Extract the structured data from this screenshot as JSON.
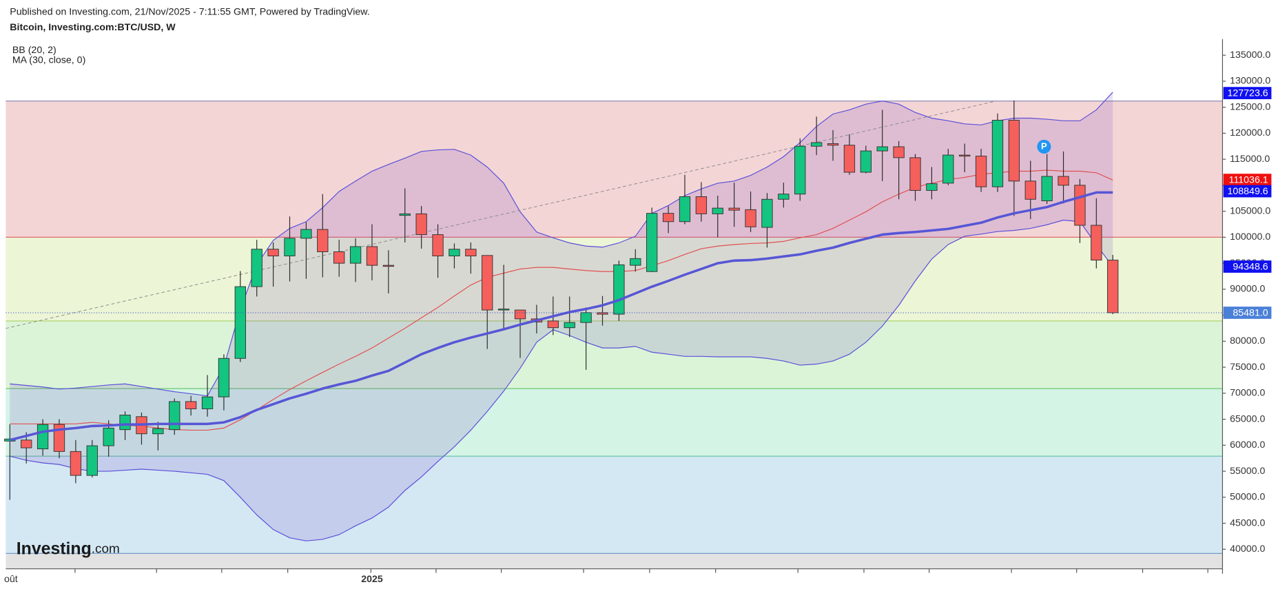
{
  "chart_data": {
    "type": "candlestick",
    "published": "Published on Investing.com, 21/Nov/2025 - 7:11:55 GMT, Powered by TradingView.",
    "title": "Bitcoin, Investing.com:BTC/USD, W",
    "indicator_labels": [
      "BB (20, 2)",
      "MA (30, close, 0)"
    ],
    "logo": {
      "name": "Investing",
      "suffix": ".com"
    },
    "marker_label": "P",
    "up_color": "#13c580",
    "down_color": "#f5605c",
    "ylim": [
      36240,
      138100
    ],
    "yticks": [
      {
        "value": 40000,
        "label": "40000.0"
      },
      {
        "value": 45000,
        "label": "45000.0"
      },
      {
        "value": 50000,
        "label": "50000.0"
      },
      {
        "value": 55000,
        "label": "55000.0"
      },
      {
        "value": 60000,
        "label": "60000.0"
      },
      {
        "value": 65000,
        "label": "65000.0"
      },
      {
        "value": 70000,
        "label": "70000.0"
      },
      {
        "value": 75000,
        "label": "75000.0"
      },
      {
        "value": 80000,
        "label": "80000.0"
      },
      {
        "value": 85000,
        "label": "85000.0"
      },
      {
        "value": 90000,
        "label": "90000.0"
      },
      {
        "value": 95000,
        "label": "95000.0"
      },
      {
        "value": 100000,
        "label": "100000.0"
      },
      {
        "value": 105000,
        "label": "105000.0"
      },
      {
        "value": 110000,
        "label": "110000.0"
      },
      {
        "value": 115000,
        "label": "115000.0"
      },
      {
        "value": 120000,
        "label": "120000.0"
      },
      {
        "value": 125000,
        "label": "125000.0"
      },
      {
        "value": 130000,
        "label": "130000.0"
      },
      {
        "value": 135000,
        "label": "135000.0"
      }
    ],
    "levels": [
      {
        "value": 126200,
        "color": "#8f8fb8",
        "fill": "#f4d5d6"
      },
      {
        "value": 100000,
        "color": "#e06a6a",
        "fill": "#ecf5d6"
      },
      {
        "value": 83900,
        "color": "#a8d060",
        "fill": "#dbf4d8"
      },
      {
        "value": 70900,
        "color": "#62c262",
        "fill": "#d4f4e6"
      },
      {
        "value": 57900,
        "color": "#5fc0a0",
        "fill": "#d4e8f4"
      },
      {
        "value": 39200,
        "color": "#6a94c4",
        "fill": "#e2e2e2"
      }
    ],
    "price_labels": [
      {
        "value": 127723.6,
        "label": "127723.6",
        "color": "#1010f0"
      },
      {
        "value": 111036.1,
        "label": "111036.1",
        "color": "#f01010"
      },
      {
        "value": 108849.6,
        "label": "108849.6",
        "color": "#1010f0"
      },
      {
        "value": 94348.6,
        "label": "94348.6",
        "color": "#1010f0"
      },
      {
        "value": 85481.0,
        "label": "85481.0",
        "color": "#4a80d8"
      }
    ],
    "categories": [
      "oût",
      null,
      null,
      null,
      null,
      null,
      null,
      null,
      null,
      null,
      null,
      null,
      null,
      null,
      null,
      null,
      null,
      null,
      null,
      null,
      null,
      null,
      "2025",
      null,
      null,
      null,
      null,
      null,
      null,
      null,
      null,
      null,
      null,
      null,
      null,
      null,
      null,
      null,
      null,
      null,
      null,
      null,
      null,
      null,
      null,
      null,
      null,
      null,
      null,
      null,
      null,
      null,
      null,
      null,
      null,
      null,
      null,
      null,
      null,
      null,
      null,
      null,
      null,
      null,
      null,
      null,
      null,
      null
    ],
    "ohlc": [
      [
        60800,
        64000,
        49500,
        61200
      ],
      [
        61000,
        62500,
        56500,
        59500
      ],
      [
        59300,
        65000,
        58000,
        64000
      ],
      [
        64000,
        65000,
        57500,
        58800
      ],
      [
        58800,
        61000,
        52700,
        54200
      ],
      [
        54200,
        61000,
        53800,
        59900
      ],
      [
        59900,
        64800,
        57800,
        63300
      ],
      [
        63000,
        66500,
        61000,
        65800
      ],
      [
        65500,
        66300,
        60100,
        62200
      ],
      [
        62200,
        64500,
        59000,
        63200
      ],
      [
        63000,
        69000,
        62000,
        68400
      ],
      [
        68400,
        69500,
        65700,
        67000
      ],
      [
        67000,
        73500,
        65500,
        69300
      ],
      [
        69300,
        77500,
        66700,
        76700
      ],
      [
        76700,
        93500,
        76000,
        90500
      ],
      [
        90500,
        99500,
        88600,
        97700
      ],
      [
        97700,
        99000,
        90500,
        96400
      ],
      [
        96400,
        104000,
        91500,
        99800
      ],
      [
        99800,
        102900,
        92000,
        101500
      ],
      [
        101500,
        108300,
        92300,
        97200
      ],
      [
        97200,
        99500,
        92400,
        95000
      ],
      [
        95000,
        99800,
        91400,
        98200
      ],
      [
        98200,
        102500,
        91700,
        94600
      ],
      [
        94600,
        97500,
        89200,
        94400
      ],
      [
        104200,
        109400,
        99000,
        104500
      ],
      [
        104500,
        106000,
        97800,
        100500
      ],
      [
        100500,
        102500,
        92200,
        96400
      ],
      [
        96400,
        98800,
        94000,
        97700
      ],
      [
        97700,
        99000,
        93000,
        96400
      ],
      [
        96500,
        96500,
        78500,
        86000
      ],
      [
        86000,
        94700,
        82500,
        86200
      ],
      [
        86000,
        86000,
        76800,
        84300
      ],
      [
        84300,
        87000,
        81500,
        83700
      ],
      [
        83900,
        88600,
        81200,
        82600
      ],
      [
        82600,
        88600,
        80800,
        83600
      ],
      [
        83600,
        86500,
        74500,
        85500
      ],
      [
        85500,
        88700,
        83000,
        85200
      ],
      [
        85200,
        95500,
        83900,
        94700
      ],
      [
        94600,
        97700,
        93400,
        95900
      ],
      [
        93400,
        105700,
        93300,
        104600
      ],
      [
        104600,
        106000,
        100800,
        103000
      ],
      [
        103000,
        112000,
        102500,
        107800
      ],
      [
        107800,
        110600,
        103000,
        104500
      ],
      [
        104500,
        108000,
        100000,
        105600
      ],
      [
        105600,
        110500,
        102000,
        105200
      ],
      [
        105300,
        108800,
        101000,
        102000
      ],
      [
        101900,
        108500,
        98000,
        107300
      ],
      [
        107300,
        110500,
        105700,
        108300
      ],
      [
        108300,
        119000,
        107000,
        117500
      ],
      [
        117500,
        123200,
        115800,
        118200
      ],
      [
        118000,
        120600,
        114700,
        117700
      ],
      [
        117700,
        119800,
        112000,
        112500
      ],
      [
        112500,
        117600,
        112300,
        116600
      ],
      [
        116600,
        124500,
        110800,
        117400
      ],
      [
        117400,
        118500,
        107300,
        115300
      ],
      [
        115300,
        116000,
        107000,
        109000
      ],
      [
        109000,
        113500,
        107300,
        110300
      ],
      [
        110400,
        117000,
        110000,
        115800
      ],
      [
        115800,
        118000,
        112500,
        115600
      ],
      [
        115600,
        117000,
        108700,
        109700
      ],
      [
        109700,
        123800,
        108700,
        122500
      ],
      [
        122500,
        126300,
        104100,
        110800
      ],
      [
        110800,
        114700,
        103500,
        107300
      ],
      [
        107000,
        116000,
        106400,
        111700
      ],
      [
        111700,
        116500,
        106500,
        110000
      ],
      [
        110000,
        111200,
        98900,
        102300
      ],
      [
        102300,
        107500,
        94000,
        95600
      ],
      [
        95600,
        96600,
        85200,
        85481
      ]
    ],
    "series": [
      {
        "color": "#5a4fd8",
        "width": 1,
        "values": [
          71800,
          71500,
          71200,
          70800,
          71000,
          71300,
          71600,
          71800,
          71300,
          70800,
          70300,
          69900,
          69500,
          75100,
          86100,
          94700,
          99400,
          101700,
          103000,
          105700,
          108800,
          110800,
          112700,
          114000,
          115200,
          116500,
          116800,
          116900,
          115800,
          113500,
          110400,
          104900,
          101000,
          99900,
          98900,
          98300,
          98100,
          98900,
          100200,
          104600,
          106100,
          108000,
          109300,
          110400,
          110800,
          111900,
          113500,
          115500,
          118200,
          121300,
          123700,
          124500,
          125600,
          126200,
          125600,
          124000,
          122900,
          122400,
          121800,
          121600,
          122400,
          122900,
          122900,
          122700,
          122400,
          122400,
          124500,
          127900
        ]
      },
      {
        "color": "#5a4fd8",
        "width": 1,
        "values": [
          57900,
          57100,
          56600,
          56300,
          55500,
          55000,
          55000,
          55200,
          55400,
          55200,
          55000,
          54700,
          54400,
          53200,
          50000,
          46600,
          43800,
          42200,
          41600,
          41900,
          42800,
          44500,
          46000,
          48100,
          51300,
          53900,
          56900,
          59700,
          62900,
          66500,
          70400,
          74800,
          79800,
          82200,
          81100,
          79800,
          78700,
          78700,
          79000,
          77900,
          77500,
          77100,
          77100,
          77000,
          77000,
          77000,
          76700,
          76200,
          75400,
          75600,
          76200,
          77500,
          79800,
          82900,
          86900,
          91600,
          95800,
          98600,
          100200,
          100600,
          101100,
          101300,
          101700,
          102400,
          103300,
          103000,
          98600,
          94300
        ]
      },
      {
        "color": "#e05050",
        "width": 1,
        "values": [
          64100,
          64100,
          64100,
          64100,
          64100,
          64400,
          64100,
          63800,
          63700,
          63300,
          63000,
          62900,
          62900,
          63300,
          64900,
          66800,
          68800,
          70700,
          72400,
          74000,
          75600,
          77100,
          78700,
          80600,
          82500,
          84500,
          86500,
          88700,
          90800,
          92300,
          93100,
          93900,
          94200,
          94200,
          93900,
          93600,
          93400,
          93400,
          93600,
          94500,
          95500,
          96700,
          97800,
          98300,
          98600,
          98800,
          98900,
          99200,
          99900,
          100500,
          101700,
          103300,
          104900,
          106800,
          108300,
          109600,
          110400,
          111100,
          111500,
          112100,
          112400,
          112700,
          112700,
          112900,
          112700,
          112700,
          112400,
          111000
        ]
      },
      {
        "color": "#5656d6",
        "width": 3,
        "values": [
          61000,
          61800,
          62600,
          63000,
          63300,
          63700,
          63800,
          64000,
          64000,
          64100,
          64100,
          64100,
          64100,
          64400,
          65400,
          66800,
          67900,
          69000,
          69900,
          70900,
          71700,
          72400,
          73400,
          74300,
          75900,
          77500,
          78700,
          79800,
          80700,
          81500,
          82300,
          83200,
          84000,
          84800,
          85600,
          86200,
          86900,
          87900,
          89200,
          90500,
          91600,
          92800,
          93900,
          95000,
          95500,
          95600,
          95900,
          96300,
          96700,
          97400,
          98000,
          98900,
          99700,
          100500,
          100800,
          101000,
          101300,
          101600,
          102200,
          102800,
          103800,
          104600,
          105200,
          105800,
          106800,
          107700,
          108600,
          108600
        ]
      }
    ]
  }
}
